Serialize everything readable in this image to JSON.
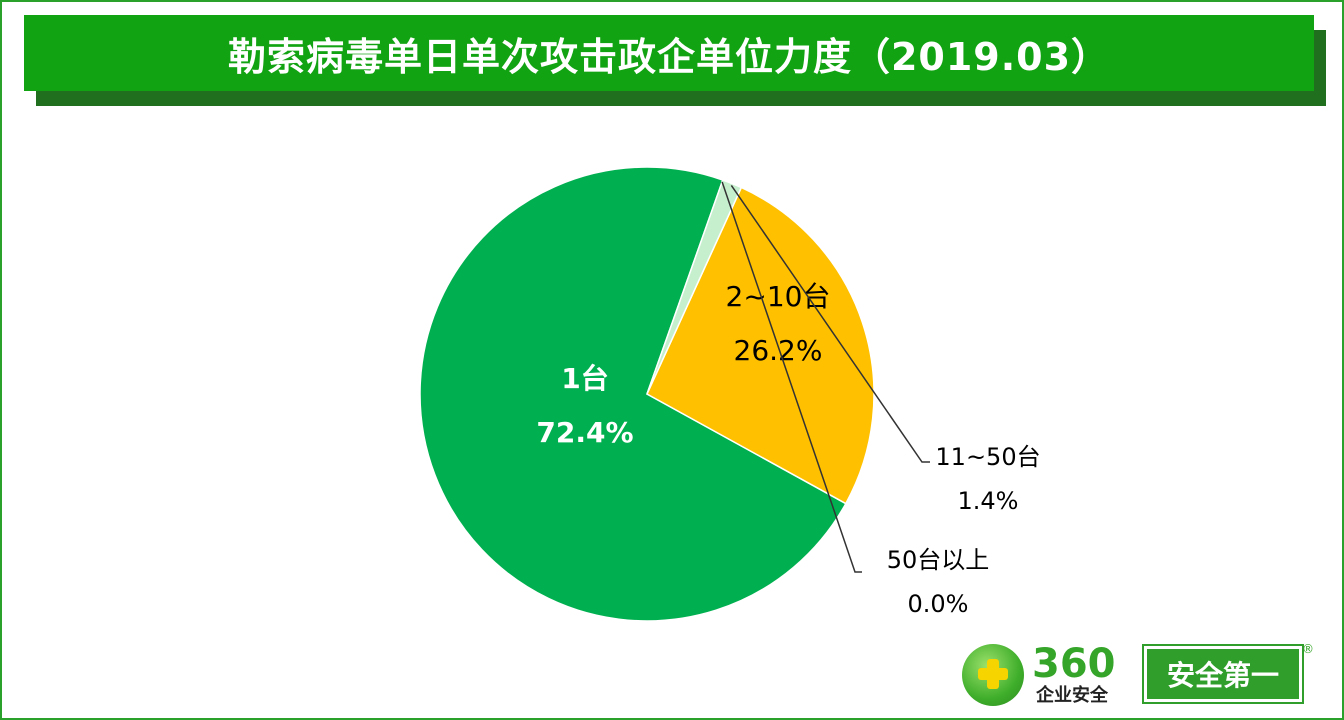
{
  "title": "勒索病毒单日单次攻击政企单位力度（2019.03）",
  "chart_data": {
    "type": "pie",
    "title": "勒索病毒单日单次攻击政企单位力度（2019.03）",
    "slices": [
      {
        "label": "1台",
        "value": 72.4,
        "value_label": "72.4%",
        "color": "#00b050"
      },
      {
        "label": "2~10台",
        "value": 26.2,
        "value_label": "26.2%",
        "color": "#ffc000"
      },
      {
        "label": "11~50台",
        "value": 1.4,
        "value_label": "1.4%",
        "color": "#c6efce"
      },
      {
        "label": "50台以上",
        "value": 0.0,
        "value_label": "0.0%",
        "color": "#a9d18e"
      }
    ],
    "start_angle_deg": -70.5,
    "direction": "counterclockwise"
  },
  "logo": {
    "brand": "360",
    "sub": "企业安全",
    "slogan": "安全第一",
    "reg": "®"
  }
}
